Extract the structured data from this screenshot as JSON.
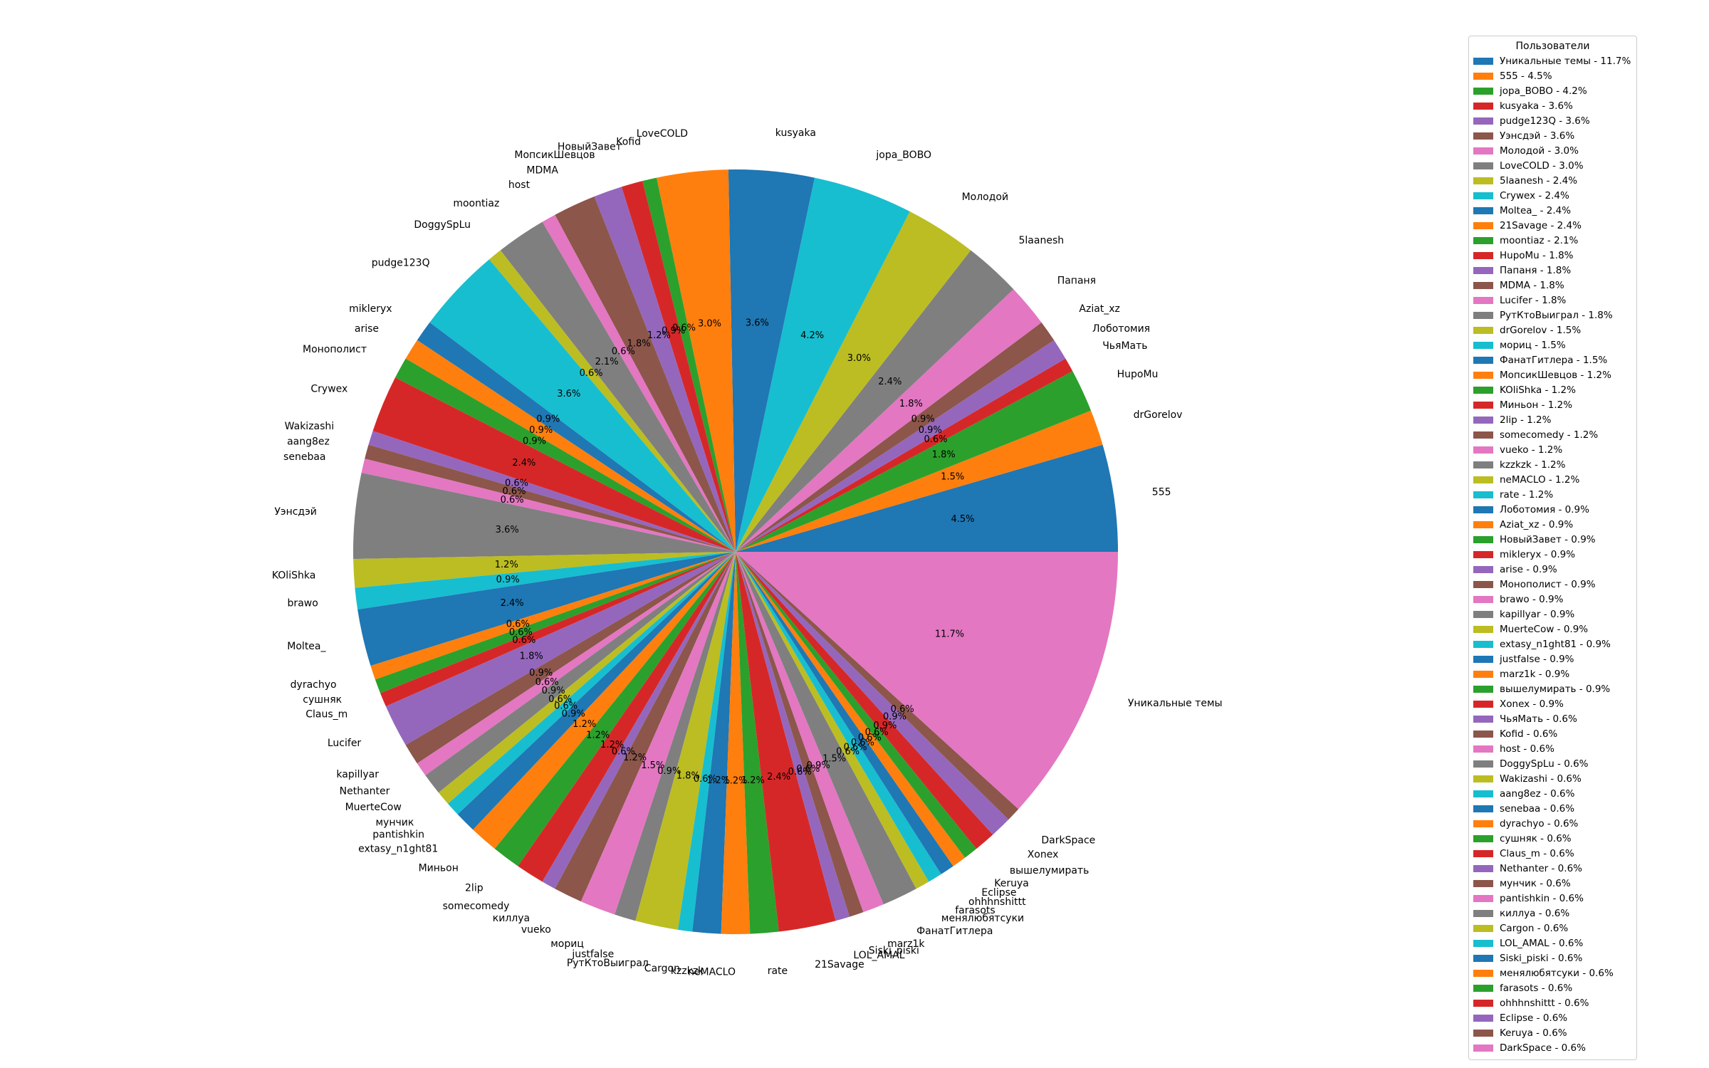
{
  "chart_data": {
    "type": "pie",
    "legend_title": "Пользователи",
    "legend_placement": "right",
    "start_angle": 0,
    "direction": "counterclockwise",
    "palette": [
      "#1f77b4",
      "#ff7f0e",
      "#2ca02c",
      "#d62728",
      "#9467bd",
      "#8c564b",
      "#e377c2",
      "#7f7f7f",
      "#bcbd22",
      "#17becf"
    ],
    "slices": [
      {
        "label": "555",
        "value": 4.5,
        "pct": "4.5%",
        "legend": "555 - 4.5%"
      },
      {
        "label": "drGorelov",
        "value": 1.5,
        "pct": "1.5%",
        "legend": "drGorelov - 1.5%"
      },
      {
        "label": "HupoMu",
        "value": 1.8,
        "pct": "1.8%",
        "legend": "HupoMu - 1.8%"
      },
      {
        "label": "ЧьяМать",
        "value": 0.6,
        "pct": "0.6%",
        "legend": "ЧьяМать - 0.6%"
      },
      {
        "label": "Лоботомия",
        "value": 0.9,
        "pct": "0.9%",
        "legend": "Лоботомия - 0.9%"
      },
      {
        "label": "Aziat_xz",
        "value": 0.9,
        "pct": "0.9%",
        "legend": "Aziat_xz - 0.9%"
      },
      {
        "label": "Папаня",
        "value": 1.8,
        "pct": "1.8%",
        "legend": "Папаня - 1.8%"
      },
      {
        "label": "5laanesh",
        "value": 2.4,
        "pct": "2.4%",
        "legend": "5laanesh - 2.4%"
      },
      {
        "label": "Молодой",
        "value": 3.0,
        "pct": "3.0%",
        "legend": "Молодой - 3.0%"
      },
      {
        "label": "jopa_BOBO",
        "value": 4.2,
        "pct": "4.2%",
        "legend": "jopa_BOBO - 4.2%"
      },
      {
        "label": "kusyaka",
        "value": 3.6,
        "pct": "3.6%",
        "legend": "kusyaka - 3.6%"
      },
      {
        "label": "LoveCOLD",
        "value": 3.0,
        "pct": "3.0%",
        "legend": "LoveCOLD - 3.0%"
      },
      {
        "label": "Kofid",
        "value": 0.6,
        "pct": "0.6%",
        "legend": "Kofid - 0.6%"
      },
      {
        "label": "НовыйЗавет",
        "value": 0.9,
        "pct": "0.9%",
        "legend": "НовыйЗавет - 0.9%"
      },
      {
        "label": "МопсикШевцов",
        "value": 1.2,
        "pct": "1.2%",
        "legend": "МопсикШевцов - 1.2%"
      },
      {
        "label": "MDMA",
        "value": 1.8,
        "pct": "1.8%",
        "legend": "MDMA - 1.8%"
      },
      {
        "label": "host",
        "value": 0.6,
        "pct": "0.6%",
        "legend": "host - 0.6%"
      },
      {
        "label": "moontiaz",
        "value": 2.1,
        "pct": "2.1%",
        "legend": "moontiaz - 2.1%"
      },
      {
        "label": "DoggySpLu",
        "value": 0.6,
        "pct": "0.6%",
        "legend": "DoggySpLu - 0.6%"
      },
      {
        "label": "pudge123Q",
        "value": 3.6,
        "pct": "3.6%",
        "legend": "pudge123Q - 3.6%"
      },
      {
        "label": "mikleryx",
        "value": 0.9,
        "pct": "0.9%",
        "legend": "mikleryx - 0.9%"
      },
      {
        "label": "arise",
        "value": 0.9,
        "pct": "0.9%",
        "legend": "arise - 0.9%"
      },
      {
        "label": "Монополист",
        "value": 0.9,
        "pct": "0.9%",
        "legend": "Монополист - 0.9%"
      },
      {
        "label": "Crywex",
        "value": 2.4,
        "pct": "2.4%",
        "legend": "Crywex - 2.4%"
      },
      {
        "label": "Wakizashi",
        "value": 0.6,
        "pct": "0.6%",
        "legend": "Wakizashi - 0.6%"
      },
      {
        "label": "aang8ez",
        "value": 0.6,
        "pct": "0.6%",
        "legend": "aang8ez - 0.6%"
      },
      {
        "label": "senebaa",
        "value": 0.6,
        "pct": "0.6%",
        "legend": "senebaa - 0.6%"
      },
      {
        "label": "Уэнсдэй",
        "value": 3.6,
        "pct": "3.6%",
        "legend": "Уэнсдэй - 3.6%"
      },
      {
        "label": "KOliShka",
        "value": 1.2,
        "pct": "1.2%",
        "legend": "KOliShka - 1.2%"
      },
      {
        "label": "brawo",
        "value": 0.9,
        "pct": "0.9%",
        "legend": "brawo - 0.9%"
      },
      {
        "label": "Moltea_",
        "value": 2.4,
        "pct": "2.4%",
        "legend": "Moltea_ - 2.4%"
      },
      {
        "label": "dyrachyo",
        "value": 0.6,
        "pct": "0.6%",
        "legend": "dyrachyo - 0.6%"
      },
      {
        "label": "сушняк",
        "value": 0.6,
        "pct": "0.6%",
        "legend": "сушняк - 0.6%"
      },
      {
        "label": "Claus_m",
        "value": 0.6,
        "pct": "0.6%",
        "legend": "Claus_m - 0.6%"
      },
      {
        "label": "Lucifer",
        "value": 1.8,
        "pct": "1.8%",
        "legend": "Lucifer - 1.8%"
      },
      {
        "label": "kapillyar",
        "value": 0.9,
        "pct": "0.9%",
        "legend": "kapillyar - 0.9%"
      },
      {
        "label": "Nethanter",
        "value": 0.6,
        "pct": "0.6%",
        "legend": "Nethanter - 0.6%"
      },
      {
        "label": "MuerteCow",
        "value": 0.9,
        "pct": "0.9%",
        "legend": "MuerteCow - 0.9%"
      },
      {
        "label": "мунчик",
        "value": 0.6,
        "pct": "0.6%",
        "legend": "мунчик - 0.6%"
      },
      {
        "label": "pantishkin",
        "value": 0.6,
        "pct": "0.6%",
        "legend": "pantishkin - 0.6%"
      },
      {
        "label": "extasy_n1ght81",
        "value": 0.9,
        "pct": "0.9%",
        "legend": "extasy_n1ght81 - 0.9%"
      },
      {
        "label": "Миньон",
        "value": 1.2,
        "pct": "1.2%",
        "legend": "Миньон - 1.2%"
      },
      {
        "label": "2lip",
        "value": 1.2,
        "pct": "1.2%",
        "legend": "2lip - 1.2%"
      },
      {
        "label": "somecomedy",
        "value": 1.2,
        "pct": "1.2%",
        "legend": "somecomedy - 1.2%"
      },
      {
        "label": "киллуа",
        "value": 0.6,
        "pct": "0.6%",
        "legend": "киллуа - 0.6%"
      },
      {
        "label": "vueko",
        "value": 1.2,
        "pct": "1.2%",
        "legend": "vueko - 1.2%"
      },
      {
        "label": "мориц",
        "value": 1.5,
        "pct": "1.5%",
        "legend": "мориц - 1.5%"
      },
      {
        "label": "justfalse",
        "value": 0.9,
        "pct": "0.9%",
        "legend": "justfalse - 0.9%"
      },
      {
        "label": "РутКтоВыиграл",
        "value": 1.8,
        "pct": "1.8%",
        "legend": "РутКтоВыиграл - 1.8%"
      },
      {
        "label": "Cargon",
        "value": 0.6,
        "pct": "0.6%",
        "legend": "Cargon - 0.6%"
      },
      {
        "label": "kzzkzk",
        "value": 1.2,
        "pct": "1.2%",
        "legend": "kzzkzk - 1.2%"
      },
      {
        "label": "neMACLO",
        "value": 1.2,
        "pct": "1.2%",
        "legend": "neMACLO - 1.2%"
      },
      {
        "label": "rate",
        "value": 1.2,
        "pct": "1.2%",
        "legend": "rate - 1.2%"
      },
      {
        "label": "21Savage",
        "value": 2.4,
        "pct": "2.4%",
        "legend": "21Savage - 2.4%"
      },
      {
        "label": "LOL_AMAL",
        "value": 0.6,
        "pct": "0.6%",
        "legend": "LOL_AMAL - 0.6%"
      },
      {
        "label": "Siski_piski",
        "value": 0.6,
        "pct": "0.6%",
        "legend": "Siski_piski - 0.6%"
      },
      {
        "label": "marz1k",
        "value": 0.9,
        "pct": "0.9%",
        "legend": "marz1k - 0.9%"
      },
      {
        "label": "ФанатГитлера",
        "value": 1.5,
        "pct": "1.5%",
        "legend": "ФанатГитлера - 1.5%"
      },
      {
        "label": "менялюбятсуки",
        "value": 0.6,
        "pct": "0.6%",
        "legend": "менялюбятсуки - 0.6%"
      },
      {
        "label": "farasots",
        "value": 0.6,
        "pct": "0.6%",
        "legend": "farasots - 0.6%"
      },
      {
        "label": "ohhhnshittt",
        "value": 0.6,
        "pct": "0.6%",
        "legend": "ohhhnshittt - 0.6%"
      },
      {
        "label": "Eclipse",
        "value": 0.6,
        "pct": "0.6%",
        "legend": "Eclipse - 0.6%"
      },
      {
        "label": "Keruya",
        "value": 0.6,
        "pct": "0.6%",
        "legend": "Keruya - 0.6%"
      },
      {
        "label": "вышелумирать",
        "value": 0.9,
        "pct": "0.9%",
        "legend": "вышелумирать - 0.9%"
      },
      {
        "label": "Xonex",
        "value": 0.9,
        "pct": "0.9%",
        "legend": "Xonex - 0.9%"
      },
      {
        "label": "DarkSpace",
        "value": 0.6,
        "pct": "0.6%",
        "legend": "DarkSpace - 0.6%"
      },
      {
        "label": "Уникальные темы",
        "value": 11.7,
        "pct": "11.7%",
        "legend": "Уникальные темы - 11.7%"
      }
    ],
    "legend_order": [
      {
        "text": "Уникальные темы - 11.7%",
        "color": "#1f77b4"
      },
      {
        "text": "555 - 4.5%",
        "color": "#ff7f0e"
      },
      {
        "text": "jopa_BOBO - 4.2%",
        "color": "#2ca02c"
      },
      {
        "text": "kusyaka - 3.6%",
        "color": "#d62728"
      },
      {
        "text": "pudge123Q - 3.6%",
        "color": "#9467bd"
      },
      {
        "text": "Уэнсдэй - 3.6%",
        "color": "#8c564b"
      },
      {
        "text": "Молодой - 3.0%",
        "color": "#e377c2"
      },
      {
        "text": "LoveCOLD - 3.0%",
        "color": "#7f7f7f"
      },
      {
        "text": "5laanesh - 2.4%",
        "color": "#bcbd22"
      },
      {
        "text": "Crywex - 2.4%",
        "color": "#17becf"
      },
      {
        "text": "Moltea_ - 2.4%",
        "color": "#1f77b4"
      },
      {
        "text": "21Savage - 2.4%",
        "color": "#ff7f0e"
      },
      {
        "text": "moontiaz - 2.1%",
        "color": "#2ca02c"
      },
      {
        "text": "HupoMu - 1.8%",
        "color": "#d62728"
      },
      {
        "text": "Папаня - 1.8%",
        "color": "#9467bd"
      },
      {
        "text": "MDMA - 1.8%",
        "color": "#8c564b"
      },
      {
        "text": "Lucifer - 1.8%",
        "color": "#e377c2"
      },
      {
        "text": "РутКтоВыиграл - 1.8%",
        "color": "#7f7f7f"
      },
      {
        "text": "drGorelov - 1.5%",
        "color": "#bcbd22"
      },
      {
        "text": "мориц - 1.5%",
        "color": "#17becf"
      },
      {
        "text": "ФанатГитлера - 1.5%",
        "color": "#1f77b4"
      },
      {
        "text": "МопсикШевцов - 1.2%",
        "color": "#ff7f0e"
      },
      {
        "text": "KOliShka - 1.2%",
        "color": "#2ca02c"
      },
      {
        "text": "Миньон - 1.2%",
        "color": "#d62728"
      },
      {
        "text": "2lip - 1.2%",
        "color": "#9467bd"
      },
      {
        "text": "somecomedy - 1.2%",
        "color": "#8c564b"
      },
      {
        "text": "vueko - 1.2%",
        "color": "#e377c2"
      },
      {
        "text": "kzzkzk - 1.2%",
        "color": "#7f7f7f"
      },
      {
        "text": "neMACLO - 1.2%",
        "color": "#bcbd22"
      },
      {
        "text": "rate - 1.2%",
        "color": "#17becf"
      },
      {
        "text": "Лоботомия - 0.9%",
        "color": "#1f77b4"
      },
      {
        "text": "Aziat_xz - 0.9%",
        "color": "#ff7f0e"
      },
      {
        "text": "НовыйЗавет - 0.9%",
        "color": "#2ca02c"
      },
      {
        "text": "mikleryx - 0.9%",
        "color": "#d62728"
      },
      {
        "text": "arise - 0.9%",
        "color": "#9467bd"
      },
      {
        "text": "Монополист - 0.9%",
        "color": "#8c564b"
      },
      {
        "text": "brawo - 0.9%",
        "color": "#e377c2"
      },
      {
        "text": "kapillyar - 0.9%",
        "color": "#7f7f7f"
      },
      {
        "text": "MuerteCow - 0.9%",
        "color": "#bcbd22"
      },
      {
        "text": "extasy_n1ght81 - 0.9%",
        "color": "#17becf"
      },
      {
        "text": "justfalse - 0.9%",
        "color": "#1f77b4"
      },
      {
        "text": "marz1k - 0.9%",
        "color": "#ff7f0e"
      },
      {
        "text": "вышелумирать - 0.9%",
        "color": "#2ca02c"
      },
      {
        "text": "Xonex - 0.9%",
        "color": "#d62728"
      },
      {
        "text": "ЧьяМать - 0.6%",
        "color": "#9467bd"
      },
      {
        "text": "Kofid - 0.6%",
        "color": "#8c564b"
      },
      {
        "text": "host - 0.6%",
        "color": "#e377c2"
      },
      {
        "text": "DoggySpLu - 0.6%",
        "color": "#7f7f7f"
      },
      {
        "text": "Wakizashi - 0.6%",
        "color": "#bcbd22"
      },
      {
        "text": "aang8ez - 0.6%",
        "color": "#17becf"
      },
      {
        "text": "senebaa - 0.6%",
        "color": "#1f77b4"
      },
      {
        "text": "dyrachyo - 0.6%",
        "color": "#ff7f0e"
      },
      {
        "text": "сушняк - 0.6%",
        "color": "#2ca02c"
      },
      {
        "text": "Claus_m - 0.6%",
        "color": "#d62728"
      },
      {
        "text": "Nethanter - 0.6%",
        "color": "#9467bd"
      },
      {
        "text": "мунчик - 0.6%",
        "color": "#8c564b"
      },
      {
        "text": "pantishkin - 0.6%",
        "color": "#e377c2"
      },
      {
        "text": "киллуа - 0.6%",
        "color": "#7f7f7f"
      },
      {
        "text": "Cargon - 0.6%",
        "color": "#bcbd22"
      },
      {
        "text": "LOL_AMAL - 0.6%",
        "color": "#17becf"
      },
      {
        "text": "Siski_piski - 0.6%",
        "color": "#1f77b4"
      },
      {
        "text": "менялюбятсуки - 0.6%",
        "color": "#ff7f0e"
      },
      {
        "text": "farasots - 0.6%",
        "color": "#2ca02c"
      },
      {
        "text": "ohhhnshittt - 0.6%",
        "color": "#d62728"
      },
      {
        "text": "Eclipse - 0.6%",
        "color": "#9467bd"
      },
      {
        "text": "Keruya - 0.6%",
        "color": "#8c564b"
      },
      {
        "text": "DarkSpace - 0.6%",
        "color": "#e377c2"
      }
    ]
  }
}
